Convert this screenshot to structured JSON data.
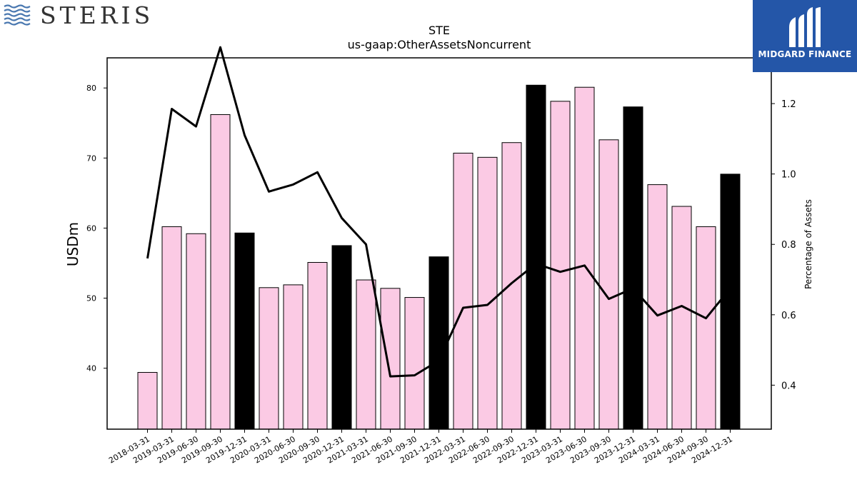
{
  "brand_left": {
    "name": "STERIS",
    "icon": "steris-waves-icon",
    "color": "#4a78b0"
  },
  "brand_right": {
    "name": "MIDGARD FINANCE",
    "icon": "midgard-m-icon",
    "bg_color": "#2456a8"
  },
  "chart_data": {
    "type": "bar",
    "title": "STE",
    "subtitle": "us-gaap:OtherAssetsNoncurrent",
    "ylabel": "USDm",
    "y2label": "Percentage of Assets",
    "ylim": [
      31.3,
      84.3
    ],
    "y2lim": [
      0.275,
      1.33
    ],
    "yticks": [
      40,
      50,
      60,
      70,
      80
    ],
    "y2ticks": [
      0.4,
      0.6,
      0.8,
      1.0,
      1.2
    ],
    "categories": [
      "2018-03-31",
      "2019-03-31",
      "2019-06-30",
      "2019-09-30",
      "2019-12-31",
      "2020-03-31",
      "2020-06-30",
      "2020-09-30",
      "2020-12-31",
      "2021-03-31",
      "2021-06-30",
      "2021-09-30",
      "2021-12-31",
      "2022-03-31",
      "2022-06-30",
      "2022-09-30",
      "2022-12-31",
      "2023-03-31",
      "2023-06-30",
      "2023-09-30",
      "2023-12-31",
      "2024-03-31",
      "2024-06-30",
      "2024-09-30",
      "2024-12-31"
    ],
    "series": [
      {
        "kind": "bar",
        "values": [
          39.4,
          60.2,
          59.2,
          76.2,
          59.3,
          51.5,
          51.9,
          55.1,
          57.5,
          52.6,
          51.4,
          50.1,
          55.9,
          70.7,
          70.1,
          72.2,
          80.4,
          78.1,
          80.1,
          72.6,
          77.3,
          66.2,
          63.1,
          60.2,
          67.7
        ],
        "highlight": [
          false,
          false,
          false,
          false,
          true,
          false,
          false,
          false,
          true,
          false,
          false,
          false,
          true,
          false,
          false,
          false,
          true,
          false,
          false,
          false,
          true,
          false,
          false,
          false,
          true
        ],
        "color": "#fbcae4",
        "highlight_color": "#000000"
      },
      {
        "kind": "line",
        "axis": "right",
        "values": [
          0.76,
          1.185,
          1.135,
          1.36,
          1.11,
          0.95,
          0.97,
          1.005,
          0.875,
          0.8,
          0.425,
          0.428,
          0.47,
          0.62,
          0.628,
          0.69,
          0.745,
          0.722,
          0.74,
          0.645,
          0.675,
          0.598,
          0.625,
          0.59,
          0.675
        ],
        "color": "#000000"
      }
    ]
  }
}
